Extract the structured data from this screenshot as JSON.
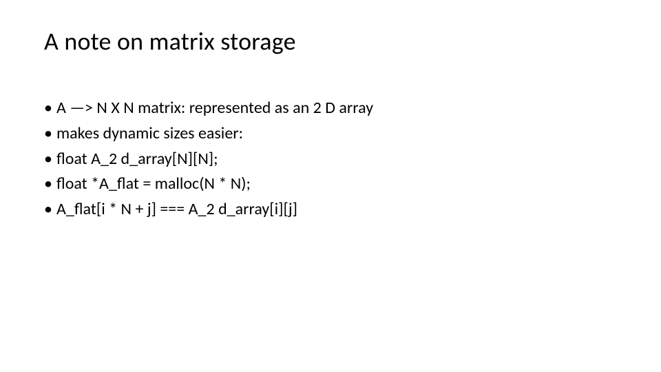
{
  "slide": {
    "background_color": "#ffffff",
    "text_color": "#000000",
    "font_family": "Calibri",
    "title": {
      "text": "A note on matrix storage",
      "fontsize": 36,
      "fontweight": 400
    },
    "bullets": {
      "marker": "•",
      "fontsize": 24,
      "line_height": 1.45,
      "items": [
        "A —> N X N matrix: represented as an 2 D array",
        "makes dynamic sizes easier:",
        "float A_2 d_array[N][N];",
        "float *A_flat = malloc(N * N);",
        "A_flat[i * N + j] === A_2 d_array[i][j]"
      ]
    }
  }
}
